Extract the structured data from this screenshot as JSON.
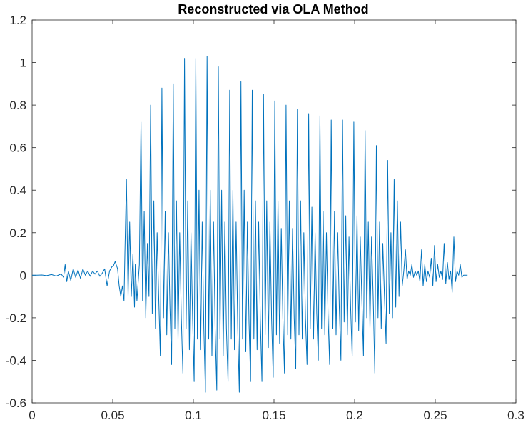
{
  "chart_data": {
    "type": "line",
    "title": "Reconstructed via OLA Method",
    "xlabel": "",
    "ylabel": "",
    "xlim": [
      0,
      0.3
    ],
    "ylim": [
      -0.6,
      1.2
    ],
    "grid": false,
    "x_ticks": [
      0,
      0.05,
      0.1,
      0.15,
      0.2,
      0.25,
      0.3
    ],
    "x_tick_labels": [
      "0",
      "0.05",
      "0.1",
      "0.15",
      "0.2",
      "0.25",
      "0.3"
    ],
    "y_ticks": [
      -0.6,
      -0.4,
      -0.2,
      0,
      0.2,
      0.4,
      0.6,
      0.8,
      1,
      1.2
    ],
    "y_tick_labels": [
      "-0.6",
      "-0.4",
      "-0.2",
      "0",
      "0.2",
      "0.4",
      "0.6",
      "0.8",
      "1",
      "1.2"
    ],
    "series": [
      {
        "color": "#0072bd",
        "points": [
          [
            0,
            0
          ],
          [
            0.003,
            0
          ],
          [
            0.006,
            0.001
          ],
          [
            0.009,
            -0.002
          ],
          [
            0.012,
            0.003
          ],
          [
            0.015,
            -0.004
          ],
          [
            0.018,
            0.006
          ],
          [
            0.0195,
            -0.01
          ],
          [
            0.0205,
            0.05
          ],
          [
            0.0215,
            -0.03
          ],
          [
            0.0225,
            0.02
          ],
          [
            0.024,
            -0.025
          ],
          [
            0.0255,
            0.03
          ],
          [
            0.027,
            -0.01
          ],
          [
            0.0285,
            0.025
          ],
          [
            0.03,
            -0.015
          ],
          [
            0.0315,
            0.03
          ],
          [
            0.033,
            0.0
          ],
          [
            0.0345,
            0.02
          ],
          [
            0.036,
            -0.005
          ],
          [
            0.0375,
            0.02
          ],
          [
            0.039,
            0.005
          ],
          [
            0.0405,
            0.02
          ],
          [
            0.042,
            -0.005
          ],
          [
            0.0435,
            0.01
          ],
          [
            0.045,
            0.03
          ],
          [
            0.0465,
            -0.05
          ],
          [
            0.048,
            0.02
          ],
          [
            0.0495,
            0.04
          ],
          [
            0.0505,
            0.045
          ],
          [
            0.0515,
            0.065
          ],
          [
            0.053,
            0.03
          ],
          [
            0.054,
            -0.05
          ],
          [
            0.055,
            -0.1
          ],
          [
            0.056,
            -0.05
          ],
          [
            0.057,
            -0.12
          ],
          [
            0.0575,
            0.1
          ],
          [
            0.0585,
            0.45
          ],
          [
            0.0595,
            -0.1
          ],
          [
            0.0605,
            0.25
          ],
          [
            0.0615,
            -0.1
          ],
          [
            0.0625,
            0.1
          ],
          [
            0.0635,
            -0.15
          ],
          [
            0.064,
            0.05
          ],
          [
            0.065,
            -0.12
          ],
          [
            0.0665,
            0.05
          ],
          [
            0.0675,
            0.72
          ],
          [
            0.0685,
            -0.12
          ],
          [
            0.0695,
            0.3
          ],
          [
            0.0705,
            -0.2
          ],
          [
            0.0715,
            0.15
          ],
          [
            0.0725,
            -0.1
          ],
          [
            0.0735,
            0.8
          ],
          [
            0.0745,
            -0.18
          ],
          [
            0.0755,
            0.35
          ],
          [
            0.0765,
            -0.25
          ],
          [
            0.0775,
            0.2
          ],
          [
            0.0785,
            -0.1
          ],
          [
            0.0795,
            -0.38
          ],
          [
            0.0805,
            0.88
          ],
          [
            0.0815,
            -0.2
          ],
          [
            0.0825,
            0.3
          ],
          [
            0.0835,
            -0.28
          ],
          [
            0.0845,
            0.2
          ],
          [
            0.0855,
            -0.15
          ],
          [
            0.0865,
            -0.42
          ],
          [
            0.0875,
            0.9
          ],
          [
            0.0885,
            -0.25
          ],
          [
            0.0895,
            0.35
          ],
          [
            0.0905,
            -0.3
          ],
          [
            0.0915,
            0.2
          ],
          [
            0.0925,
            -0.2
          ],
          [
            0.0935,
            -0.46
          ],
          [
            0.0945,
            1.02
          ],
          [
            0.0955,
            -0.25
          ],
          [
            0.0965,
            0.35
          ],
          [
            0.0975,
            -0.35
          ],
          [
            0.0985,
            0.2
          ],
          [
            0.0995,
            -0.2
          ],
          [
            0.1005,
            -0.5
          ],
          [
            0.1015,
            1.02
          ],
          [
            0.1025,
            -0.3
          ],
          [
            0.1035,
            0.4
          ],
          [
            0.1045,
            -0.35
          ],
          [
            0.1055,
            0.25
          ],
          [
            0.1065,
            -0.25
          ],
          [
            0.1075,
            -0.55
          ],
          [
            0.1085,
            1.03
          ],
          [
            0.1095,
            -0.3
          ],
          [
            0.1105,
            0.4
          ],
          [
            0.1115,
            -0.38
          ],
          [
            0.1125,
            0.25
          ],
          [
            0.1135,
            -0.25
          ],
          [
            0.1145,
            -0.54
          ],
          [
            0.1155,
            0.98
          ],
          [
            0.1165,
            -0.3
          ],
          [
            0.1175,
            0.4
          ],
          [
            0.1185,
            -0.38
          ],
          [
            0.1195,
            0.25
          ],
          [
            0.1205,
            -0.25
          ],
          [
            0.1215,
            -0.5
          ],
          [
            0.1225,
            0.87
          ],
          [
            0.1235,
            -0.3
          ],
          [
            0.1245,
            0.4
          ],
          [
            0.1255,
            -0.35
          ],
          [
            0.1265,
            0.25
          ],
          [
            0.1275,
            -0.25
          ],
          [
            0.1285,
            -0.55
          ],
          [
            0.1295,
            0.91
          ],
          [
            0.1305,
            -0.3
          ],
          [
            0.1315,
            0.4
          ],
          [
            0.1325,
            -0.36
          ],
          [
            0.1335,
            0.25
          ],
          [
            0.1345,
            -0.22
          ],
          [
            0.1355,
            -0.5
          ],
          [
            0.1365,
            0.87
          ],
          [
            0.1375,
            -0.3
          ],
          [
            0.1385,
            0.35
          ],
          [
            0.1395,
            -0.35
          ],
          [
            0.1405,
            0.25
          ],
          [
            0.1415,
            -0.2
          ],
          [
            0.1425,
            -0.5
          ],
          [
            0.1435,
            0.85
          ],
          [
            0.1445,
            -0.28
          ],
          [
            0.1455,
            0.35
          ],
          [
            0.1465,
            -0.34
          ],
          [
            0.1475,
            0.25
          ],
          [
            0.1485,
            -0.2
          ],
          [
            0.1495,
            -0.48
          ],
          [
            0.1505,
            0.82
          ],
          [
            0.1515,
            -0.28
          ],
          [
            0.1525,
            0.35
          ],
          [
            0.1535,
            -0.32
          ],
          [
            0.1545,
            0.22
          ],
          [
            0.1555,
            -0.2
          ],
          [
            0.1565,
            -0.46
          ],
          [
            0.1575,
            0.8
          ],
          [
            0.1585,
            -0.28
          ],
          [
            0.1595,
            0.35
          ],
          [
            0.1605,
            -0.3
          ],
          [
            0.1615,
            0.22
          ],
          [
            0.1625,
            -0.2
          ],
          [
            0.1635,
            -0.44
          ],
          [
            0.1645,
            0.78
          ],
          [
            0.1655,
            -0.28
          ],
          [
            0.1665,
            0.35
          ],
          [
            0.1675,
            -0.3
          ],
          [
            0.1685,
            0.2
          ],
          [
            0.1695,
            -0.2
          ],
          [
            0.1705,
            -0.42
          ],
          [
            0.1715,
            0.76
          ],
          [
            0.1725,
            -0.25
          ],
          [
            0.1735,
            0.32
          ],
          [
            0.1745,
            -0.3
          ],
          [
            0.1755,
            0.2
          ],
          [
            0.1765,
            -0.18
          ],
          [
            0.1775,
            -0.4
          ],
          [
            0.1785,
            0.75
          ],
          [
            0.1795,
            -0.25
          ],
          [
            0.1805,
            0.3
          ],
          [
            0.1815,
            -0.28
          ],
          [
            0.1825,
            0.2
          ],
          [
            0.1835,
            -0.18
          ],
          [
            0.1845,
            -0.42
          ],
          [
            0.1855,
            0.73
          ],
          [
            0.1865,
            -0.25
          ],
          [
            0.1875,
            0.3
          ],
          [
            0.1885,
            -0.28
          ],
          [
            0.1895,
            0.2
          ],
          [
            0.1905,
            -0.15
          ],
          [
            0.1915,
            -0.4
          ],
          [
            0.1925,
            0.73
          ],
          [
            0.1935,
            -0.22
          ],
          [
            0.1945,
            0.28
          ],
          [
            0.1955,
            -0.28
          ],
          [
            0.1965,
            0.18
          ],
          [
            0.1975,
            -0.15
          ],
          [
            0.1985,
            -0.38
          ],
          [
            0.1995,
            0.72
          ],
          [
            0.2005,
            -0.22
          ],
          [
            0.2015,
            0.28
          ],
          [
            0.2025,
            -0.26
          ],
          [
            0.2035,
            0.18
          ],
          [
            0.2045,
            -0.12
          ],
          [
            0.2055,
            -0.38
          ],
          [
            0.2065,
            0.68
          ],
          [
            0.2075,
            -0.2
          ],
          [
            0.2085,
            0.25
          ],
          [
            0.2095,
            -0.25
          ],
          [
            0.2105,
            0.18
          ],
          [
            0.2115,
            -0.1
          ],
          [
            0.2125,
            -0.46
          ],
          [
            0.2135,
            0.61
          ],
          [
            0.2145,
            -0.2
          ],
          [
            0.2155,
            0.25
          ],
          [
            0.2165,
            -0.25
          ],
          [
            0.2175,
            0.15
          ],
          [
            0.2185,
            -0.1
          ],
          [
            0.2195,
            -0.32
          ],
          [
            0.2205,
            0.54
          ],
          [
            0.2215,
            -0.18
          ],
          [
            0.2225,
            0.2
          ],
          [
            0.2235,
            -0.2
          ],
          [
            0.2245,
            0.45
          ],
          [
            0.2255,
            -0.15
          ],
          [
            0.2265,
            0.35
          ],
          [
            0.2275,
            -0.1
          ],
          [
            0.2285,
            0.25
          ],
          [
            0.2295,
            -0.05
          ],
          [
            0.2305,
            0.02
          ],
          [
            0.2315,
            0.12
          ],
          [
            0.2325,
            -0.02
          ],
          [
            0.2335,
            0.02
          ],
          [
            0.2345,
            0.0
          ],
          [
            0.2355,
            0.05
          ],
          [
            0.2365,
            -0.01
          ],
          [
            0.2375,
            0.02
          ],
          [
            0.2385,
            0.0
          ],
          [
            0.2395,
            0.02
          ],
          [
            0.2405,
            -0.03
          ],
          [
            0.2415,
            0.12
          ],
          [
            0.2425,
            -0.05
          ],
          [
            0.2435,
            0.05
          ],
          [
            0.2445,
            -0.03
          ],
          [
            0.2455,
            0.02
          ],
          [
            0.2465,
            -0.01
          ],
          [
            0.2475,
            0.08
          ],
          [
            0.2485,
            -0.05
          ],
          [
            0.2495,
            0.14
          ],
          [
            0.2505,
            -0.03
          ],
          [
            0.2515,
            0.05
          ],
          [
            0.2525,
            -0.01
          ],
          [
            0.2535,
            0.02
          ],
          [
            0.2545,
            -0.02
          ],
          [
            0.2555,
            0.15
          ],
          [
            0.2565,
            -0.04
          ],
          [
            0.2575,
            0.06
          ],
          [
            0.2585,
            -0.02
          ],
          [
            0.2595,
            0.02
          ],
          [
            0.2605,
            -0.08
          ],
          [
            0.2615,
            0.18
          ],
          [
            0.2625,
            -0.03
          ],
          [
            0.2635,
            0.02
          ],
          [
            0.2645,
            0.0
          ],
          [
            0.2655,
            0.05
          ],
          [
            0.2665,
            -0.01
          ],
          [
            0.2675,
            0.0
          ],
          [
            0.269,
            0.0
          ],
          [
            0.27,
            0.0
          ]
        ]
      }
    ]
  }
}
